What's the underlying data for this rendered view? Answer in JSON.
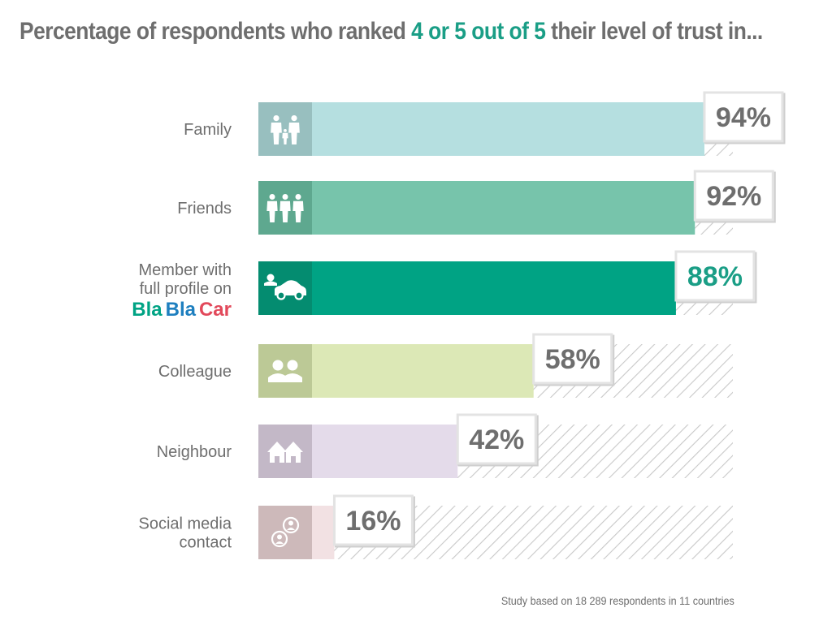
{
  "title": {
    "prefix": "Percentage of respondents who ranked ",
    "highlight": "4 or 5 out of 5",
    "suffix": " their level of trust in..."
  },
  "footnote": "Study based on 18 289 respondents in 11 countries",
  "colors": {
    "title_highlight": "#1a9e86",
    "text": "#6e6e6e",
    "hatch": "#c8c8c8",
    "highlight_value": "#1a9e86"
  },
  "chart_data": {
    "type": "bar",
    "orientation": "horizontal",
    "xlim": [
      0,
      100
    ],
    "unit": "%",
    "categories": [
      {
        "label_lines": [
          "Family"
        ],
        "value": 94,
        "value_label": "94%",
        "bar_color": "#b5dfe0",
        "icon_bg": "#98bfbf",
        "icon": "family-icon"
      },
      {
        "label_lines": [
          "Friends"
        ],
        "value": 92,
        "value_label": "92%",
        "bar_color": "#77c4ab",
        "icon_bg": "#5ea88f",
        "icon": "friends-icon"
      },
      {
        "label_lines": [
          "Member with",
          "full profile on"
        ],
        "logo": [
          "Bla",
          "Bla",
          "Car"
        ],
        "value": 88,
        "value_label": "88%",
        "bar_color": "#00a384",
        "icon_bg": "#048c70",
        "icon": "car-icon",
        "highlight": true
      },
      {
        "label_lines": [
          "Colleague"
        ],
        "value": 58,
        "value_label": "58%",
        "bar_color": "#dce8b6",
        "icon_bg": "#bcc996",
        "icon": "colleague-icon"
      },
      {
        "label_lines": [
          "Neighbour"
        ],
        "value": 42,
        "value_label": "42%",
        "bar_color": "#e4dbea",
        "icon_bg": "#c3b8c7",
        "icon": "house-icon"
      },
      {
        "label_lines": [
          "Social media",
          "contact"
        ],
        "value": 16,
        "value_label": "16%",
        "bar_color": "#f2e1e3",
        "icon_bg": "#cdb9ba",
        "icon": "social-icon"
      }
    ]
  }
}
